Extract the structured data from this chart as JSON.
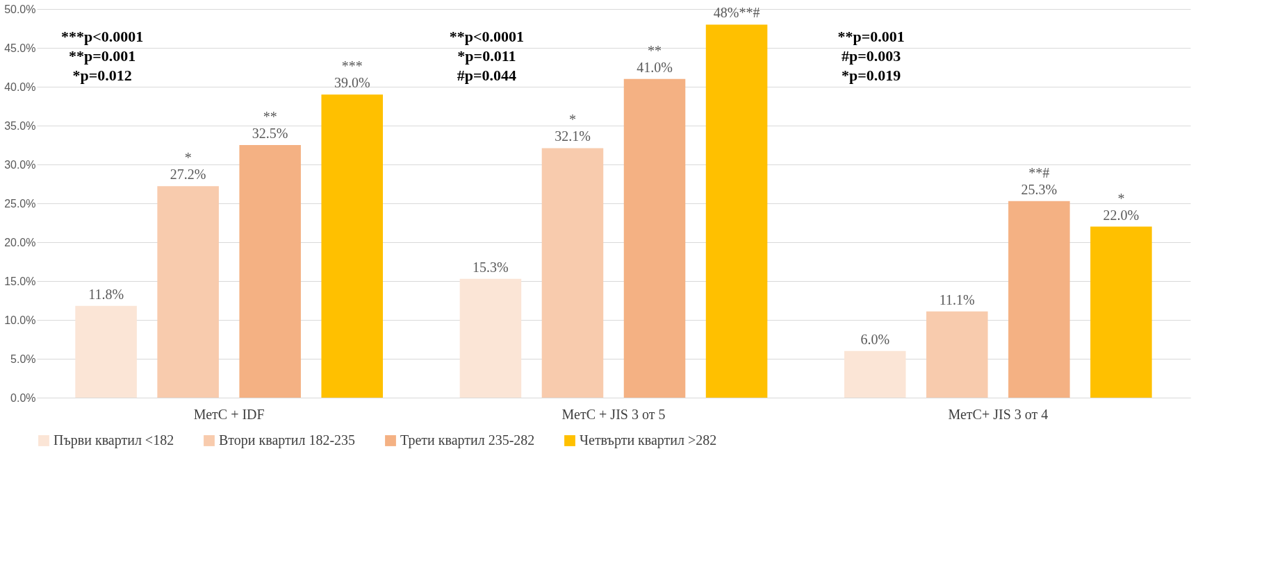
{
  "chart_data": {
    "type": "bar",
    "categories": [
      "МетС + IDF",
      "МетС + JIS 3 от 5",
      "МетС+ JIS 3 от 4"
    ],
    "series": [
      {
        "name": "Първи квартил <182",
        "color": "#fbe5d6",
        "values": [
          11.8,
          15.3,
          6.0
        ],
        "value_labels": [
          "11.8%",
          "15.3%",
          "6.0%"
        ]
      },
      {
        "name": "Втори квартил 182-235",
        "color": "#f8cbad",
        "values": [
          27.2,
          32.1,
          11.1
        ],
        "value_labels": [
          "*\n27.2%",
          "*\n32.1%",
          "11.1%"
        ]
      },
      {
        "name": "Трети квартил 235-282",
        "color": "#f4b183",
        "values": [
          32.5,
          41.0,
          25.3
        ],
        "value_labels": [
          "**\n32.5%",
          "**\n41.0%",
          "**#\n25.3%"
        ]
      },
      {
        "name": "Четвърти квартил >282",
        "color": "#ffc000",
        "values": [
          39.0,
          48,
          22.0
        ],
        "value_labels": [
          "***\n39.0%",
          "48%**#",
          "*\n22.0%"
        ]
      }
    ],
    "ylim": [
      0,
      50
    ],
    "yticks": [
      {
        "value": 0,
        "label": "0.0%"
      },
      {
        "value": 5,
        "label": "5.0%"
      },
      {
        "value": 10,
        "label": "10.0%"
      },
      {
        "value": 15,
        "label": "15.0%"
      },
      {
        "value": 20,
        "label": "20.0%"
      },
      {
        "value": 25,
        "label": "25.0%"
      },
      {
        "value": 30,
        "label": "30.0%"
      },
      {
        "value": 35,
        "label": "35.0%"
      },
      {
        "value": 40,
        "label": "40.0%"
      },
      {
        "value": 45,
        "label": "45.0%"
      },
      {
        "value": 50,
        "label": "50.0%"
      }
    ],
    "grid": "y",
    "legend": "bottom",
    "annotations": [
      "***p<0.0001\n**p=0.001\n*p=0.012",
      "**p<0.0001\n*p=0.011\n#p=0.044",
      "**p=0.001\n#p=0.003\n*p=0.019"
    ]
  }
}
